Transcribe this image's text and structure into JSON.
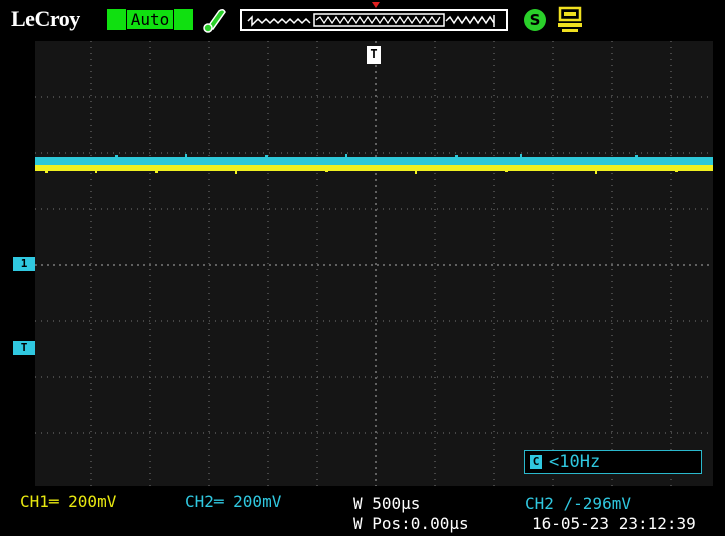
{
  "header": {
    "brand": "LeCroy",
    "mode": "Auto",
    "save_icon": "save-icon",
    "usb_icon": "usb-icon"
  },
  "markers": {
    "trigger_top": "T",
    "ch1_marker": "1",
    "trigger_left": "T"
  },
  "frequency": {
    "icon": "C",
    "value": "<10Hz"
  },
  "status": {
    "ch1": "CH1═ 200mV",
    "ch2": "CH2═ 200mV",
    "timebase": "W 500μs",
    "wpos": "W Pos:0.00μs",
    "trigger": "CH2 ∕-296mV",
    "datetime": "16-05-23 23:12:39"
  },
  "colors": {
    "ch1": "#e8e810",
    "ch2": "#30c8e0",
    "accent": "#10e010"
  }
}
